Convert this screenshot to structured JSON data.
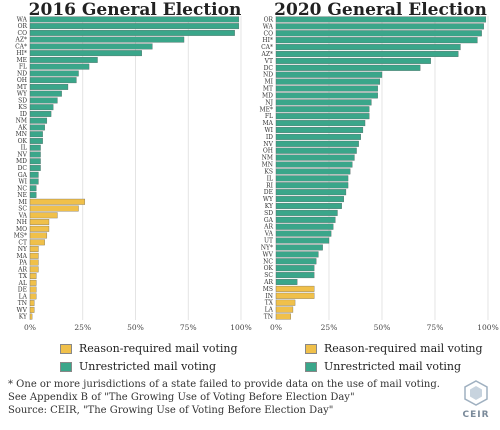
{
  "colors": {
    "unrestricted": "#3aa68a",
    "reason_required": "#f0c04a",
    "grid": "#dddddd"
  },
  "legend": {
    "reason_required": "Reason-required mail voting",
    "unrestricted": "Unrestricted mail voting"
  },
  "footnotes": {
    "line1": "* One or more jurisdictions of a state failed to provide data on the use of mail voting.",
    "line2": "See Appendix B of \"The Growing Use of Voting Before Election Day\"",
    "line3": "Source: CEIR, \"The Growing Use of Voting Before Election Day\""
  },
  "logo": {
    "text": "CEIR"
  },
  "chart_data": [
    {
      "type": "bar",
      "orientation": "horizontal",
      "title": "2016 General Election",
      "xlim": [
        0,
        100
      ],
      "xticks": [
        "0%",
        "25%",
        "50%",
        "75%",
        "100%"
      ],
      "grid": true,
      "categories": [
        "WA",
        "OR",
        "CO",
        "AZ*",
        "CA*",
        "HI*",
        "ME",
        "FL",
        "ND",
        "OH",
        "MT",
        "WY",
        "SD",
        "KS",
        "ID",
        "NM",
        "AK",
        "MN",
        "OK",
        "IL",
        "NV",
        "MD",
        "DC",
        "GA",
        "WI",
        "NC",
        "NE",
        "MI",
        "SC",
        "VA",
        "NH",
        "MO",
        "MS*",
        "CT",
        "NY",
        "MA",
        "PA",
        "AR",
        "TX",
        "AL",
        "DE",
        "LA",
        "TN",
        "WV",
        "KY"
      ],
      "values": [
        99,
        99,
        97,
        73,
        58,
        53,
        32,
        28,
        23,
        22,
        18,
        15,
        13,
        11,
        10,
        8,
        7,
        6,
        6,
        5,
        5,
        5,
        5,
        4,
        4,
        3,
        3,
        26,
        23,
        13,
        9,
        9,
        8,
        7,
        4,
        4,
        4,
        4,
        3,
        3,
        3,
        3,
        2,
        2,
        1
      ],
      "group": [
        "u",
        "u",
        "u",
        "u",
        "u",
        "u",
        "u",
        "u",
        "u",
        "u",
        "u",
        "u",
        "u",
        "u",
        "u",
        "u",
        "u",
        "u",
        "u",
        "u",
        "u",
        "u",
        "u",
        "u",
        "u",
        "u",
        "u",
        "r",
        "r",
        "r",
        "r",
        "r",
        "r",
        "r",
        "r",
        "r",
        "r",
        "r",
        "r",
        "r",
        "r",
        "r",
        "r",
        "r",
        "r"
      ]
    },
    {
      "type": "bar",
      "orientation": "horizontal",
      "title": "2020 General Election",
      "xlim": [
        0,
        100
      ],
      "xticks": [
        "0%",
        "25%",
        "50%",
        "75%",
        "100%"
      ],
      "grid": true,
      "categories": [
        "OR",
        "WA",
        "CO",
        "HI*",
        "CA*",
        "AZ*",
        "VT",
        "DC",
        "ND",
        "MI",
        "MT",
        "MD",
        "NJ",
        "ME*",
        "FL",
        "MA",
        "WI",
        "ID",
        "NV",
        "OH",
        "NM",
        "MN",
        "KS",
        "IL",
        "RI",
        "DE",
        "WY",
        "KY",
        "SD",
        "GA",
        "AR",
        "VA",
        "UT",
        "NY*",
        "WV",
        "NC",
        "OK",
        "SC",
        "AR",
        "MS",
        "IN",
        "TX",
        "LA",
        "TN"
      ],
      "values": [
        99,
        98,
        97,
        95,
        87,
        86,
        73,
        68,
        50,
        49,
        48,
        48,
        45,
        44,
        44,
        42,
        41,
        40,
        39,
        38,
        37,
        36,
        35,
        34,
        34,
        33,
        32,
        31,
        29,
        28,
        27,
        26,
        25,
        22,
        20,
        19,
        18,
        18,
        10,
        18,
        18,
        9,
        8,
        7
      ],
      "group": [
        "u",
        "u",
        "u",
        "u",
        "u",
        "u",
        "u",
        "u",
        "u",
        "u",
        "u",
        "u",
        "u",
        "u",
        "u",
        "u",
        "u",
        "u",
        "u",
        "u",
        "u",
        "u",
        "u",
        "u",
        "u",
        "u",
        "u",
        "u",
        "u",
        "u",
        "u",
        "u",
        "u",
        "u",
        "u",
        "u",
        "u",
        "u",
        "u",
        "r",
        "r",
        "r",
        "r",
        "r"
      ]
    }
  ]
}
